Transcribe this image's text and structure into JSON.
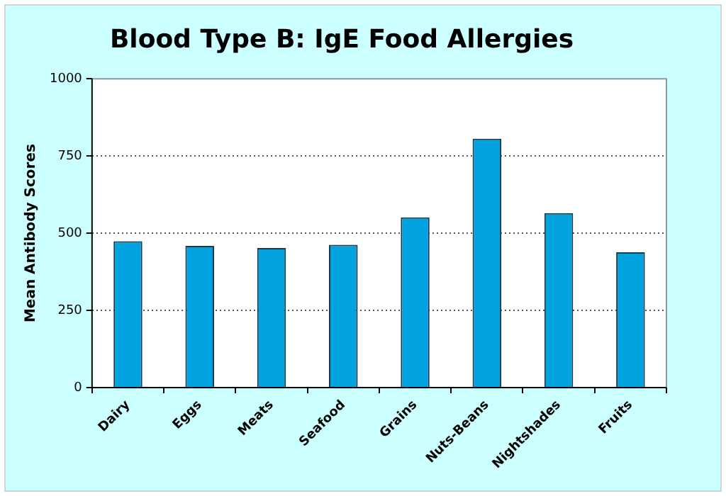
{
  "chart_data": {
    "type": "bar",
    "title": "Blood Type B: IgE Food Allergies",
    "ylabel": "Mean Antibody Scores",
    "categories": [
      "Dairy",
      "Eggs",
      "Meats",
      "Seafood",
      "Grains",
      "Nuts-Beans",
      "Nightshades",
      "Fruits"
    ],
    "values": [
      474,
      459,
      452,
      462,
      551,
      806,
      565,
      438
    ],
    "color": "#00a2e0",
    "ylim": [
      0,
      1000
    ],
    "yticks": [
      0,
      250,
      500,
      750,
      1000
    ],
    "grid": "y",
    "legend": false
  }
}
